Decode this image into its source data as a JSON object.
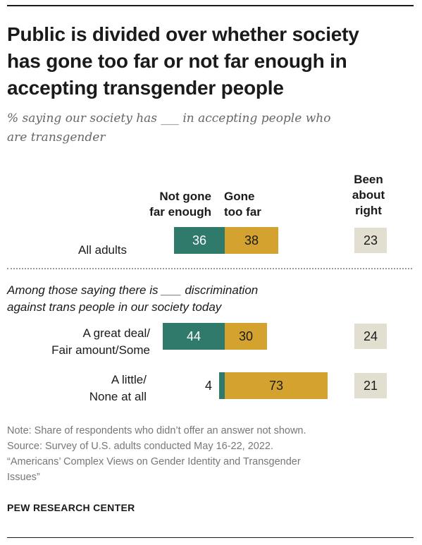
{
  "title_lines": [
    "Public is divided over whether society",
    "has gone too far or not far enough in",
    "accepting transgender people"
  ],
  "subtitle_lines": [
    "% saying our society has ___ in accepting people who",
    "are transgender"
  ],
  "columns": {
    "not_far_enough": [
      "Not gone",
      "far enough"
    ],
    "too_far": [
      "Gone",
      "too far"
    ],
    "about_right": [
      "Been",
      "about",
      "right"
    ]
  },
  "group_label_lines": [
    "Among those saying there is ___ discrimination",
    "against trans people in our society today"
  ],
  "colors": {
    "not_far_enough": "#2f7a6b",
    "too_far": "#d4a22f",
    "about_right": "#e2dfd0"
  },
  "chart_data": {
    "type": "bar",
    "stacked": true,
    "categories": [
      "All adults",
      "A great deal/ Fair amount/Some",
      "A little/ None at all"
    ],
    "category_lines": [
      [
        "All adults"
      ],
      [
        "A great deal/",
        "Fair amount/Some"
      ],
      [
        "A little/",
        "None at all"
      ]
    ],
    "series": [
      {
        "name": "Not gone far enough",
        "values": [
          36,
          44,
          4
        ]
      },
      {
        "name": "Gone too far",
        "values": [
          38,
          30,
          73
        ]
      },
      {
        "name": "Been about right",
        "values": [
          23,
          24,
          21
        ]
      }
    ],
    "value_labels": {
      "not_far_enough": [
        "36",
        "44",
        "4"
      ],
      "too_far": [
        "38",
        "30",
        "73"
      ],
      "about_right": [
        "23",
        "24",
        "21"
      ]
    }
  },
  "note_lines": [
    "Note: Share of respondents who didn’t offer an answer not shown.",
    "Source: Survey of U.S. adults conducted May 16-22, 2022.",
    "“Americans’ Complex Views on Gender Identity and Transgender",
    "Issues”"
  ],
  "brand": "PEW RESEARCH CENTER"
}
